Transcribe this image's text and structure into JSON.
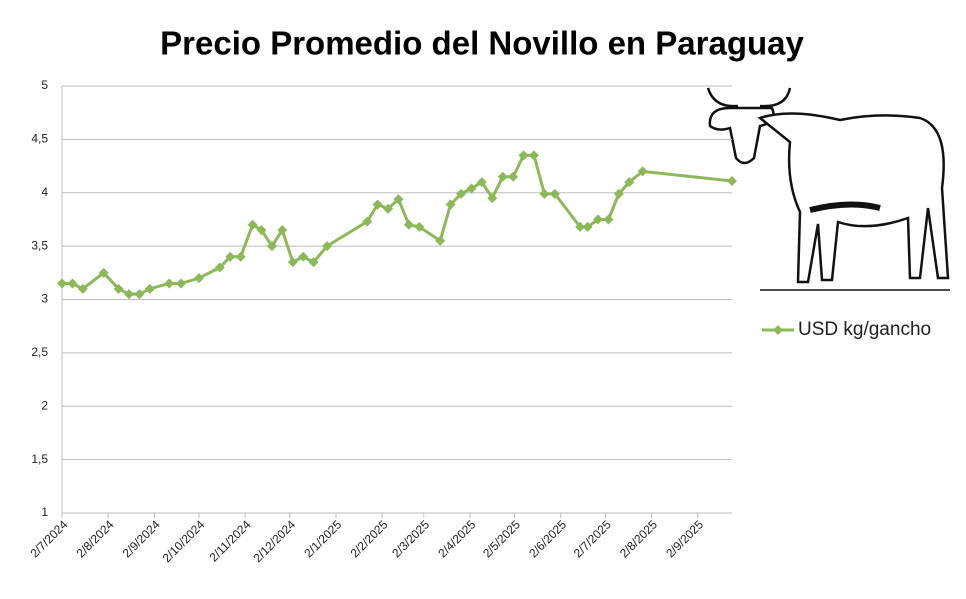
{
  "chart_data": {
    "type": "line",
    "title": "Precio Promedio del Novillo en Paraguay",
    "x": [
      "2024-07-02",
      "2024-07-09",
      "2024-07-16",
      "2024-07-30",
      "2024-08-09",
      "2024-08-16",
      "2024-08-23",
      "2024-08-30",
      "2024-09-12",
      "2024-09-20",
      "2024-10-02",
      "2024-10-16",
      "2024-10-23",
      "2024-10-30",
      "2024-11-07",
      "2024-11-13",
      "2024-11-20",
      "2024-11-27",
      "2024-12-04",
      "2024-12-11",
      "2024-12-18",
      "2024-12-27",
      "2025-01-23",
      "2025-01-30",
      "2025-02-06",
      "2025-02-13",
      "2025-02-20",
      "2025-02-27",
      "2025-03-13",
      "2025-03-20",
      "2025-03-27",
      "2025-04-03",
      "2025-04-10",
      "2025-04-17",
      "2025-04-24",
      "2025-05-01",
      "2025-05-08",
      "2025-05-15",
      "2025-05-22",
      "2025-05-29",
      "2025-06-15",
      "2025-06-20",
      "2025-06-27",
      "2025-07-04",
      "2025-07-11",
      "2025-07-18",
      "2025-07-27",
      "2025-09-25"
    ],
    "series": [
      {
        "name": "USD kg/gancho",
        "color": "#8db85a",
        "values": [
          3.15,
          3.15,
          3.1,
          3.25,
          3.1,
          3.05,
          3.05,
          3.1,
          3.15,
          3.15,
          3.2,
          3.3,
          3.4,
          3.4,
          3.7,
          3.65,
          3.5,
          3.65,
          3.35,
          3.4,
          3.35,
          3.5,
          3.73,
          3.89,
          3.85,
          3.94,
          3.7,
          3.68,
          3.55,
          3.89,
          3.99,
          4.04,
          4.1,
          3.95,
          4.15,
          4.15,
          4.35,
          4.35,
          3.99,
          3.99,
          3.68,
          3.68,
          3.75,
          3.75,
          3.99,
          4.1,
          4.2,
          4.11
        ]
      }
    ],
    "xlim": [
      "2024-07-02",
      "2025-09-25"
    ],
    "xticks": [
      {
        "value": "2024-07-02",
        "label": "2/7/2024"
      },
      {
        "value": "2024-08-02",
        "label": "2/8/2024"
      },
      {
        "value": "2024-09-02",
        "label": "2/9/2024"
      },
      {
        "value": "2024-10-02",
        "label": "2/10/2024"
      },
      {
        "value": "2024-11-02",
        "label": "2/11/2024"
      },
      {
        "value": "2024-12-02",
        "label": "2/12/2024"
      },
      {
        "value": "2025-01-02",
        "label": "2/1/2025"
      },
      {
        "value": "2025-02-02",
        "label": "2/2/2025"
      },
      {
        "value": "2025-03-02",
        "label": "2/3/2025"
      },
      {
        "value": "2025-04-02",
        "label": "2/4/2025"
      },
      {
        "value": "2025-05-02",
        "label": "2/5/2025"
      },
      {
        "value": "2025-06-02",
        "label": "2/6/2025"
      },
      {
        "value": "2025-07-02",
        "label": "2/7/2025"
      },
      {
        "value": "2025-08-02",
        "label": "2/8/2025"
      },
      {
        "value": "2025-09-02",
        "label": "2/9/2025"
      }
    ],
    "ylim": [
      1,
      5
    ],
    "yticks": [
      1,
      {
        "value": 1.5,
        "label": "1,5"
      },
      2,
      {
        "value": 2.5,
        "label": "2,5"
      },
      3,
      {
        "value": 3.5,
        "label": "3,5"
      },
      4,
      {
        "value": 4.5,
        "label": "4,5"
      },
      5
    ],
    "grid": true,
    "legend": "right"
  }
}
